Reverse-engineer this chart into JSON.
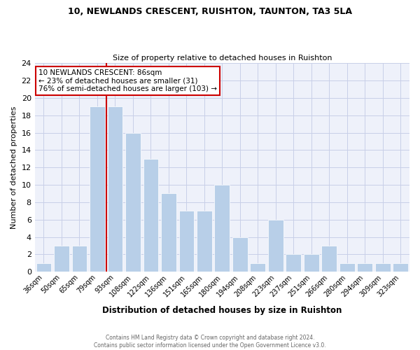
{
  "title": "10, NEWLANDS CRESCENT, RUISHTON, TAUNTON, TA3 5LA",
  "subtitle": "Size of property relative to detached houses in Ruishton",
  "xlabel": "Distribution of detached houses by size in Ruishton",
  "ylabel": "Number of detached properties",
  "categories": [
    "36sqm",
    "50sqm",
    "65sqm",
    "79sqm",
    "93sqm",
    "108sqm",
    "122sqm",
    "136sqm",
    "151sqm",
    "165sqm",
    "180sqm",
    "194sqm",
    "208sqm",
    "223sqm",
    "237sqm",
    "251sqm",
    "266sqm",
    "280sqm",
    "294sqm",
    "309sqm",
    "323sqm"
  ],
  "values": [
    1,
    3,
    3,
    19,
    19,
    16,
    13,
    9,
    7,
    7,
    10,
    4,
    1,
    6,
    2,
    2,
    3,
    1,
    1,
    1,
    1
  ],
  "bar_color": "#b8cfe8",
  "property_line_color": "#cc0000",
  "annotation_text": "10 NEWLANDS CRESCENT: 86sqm\n← 23% of detached houses are smaller (31)\n76% of semi-detached houses are larger (103) →",
  "annotation_box_edgecolor": "#cc0000",
  "ylim": [
    0,
    24
  ],
  "yticks": [
    0,
    2,
    4,
    6,
    8,
    10,
    12,
    14,
    16,
    18,
    20,
    22,
    24
  ],
  "footer_line1": "Contains HM Land Registry data © Crown copyright and database right 2024.",
  "footer_line2": "Contains public sector information licensed under the Open Government Licence v3.0.",
  "bg_color": "#eef1fa",
  "grid_color": "#c8cfe8",
  "n_bars": 21,
  "property_bar_index": 4
}
